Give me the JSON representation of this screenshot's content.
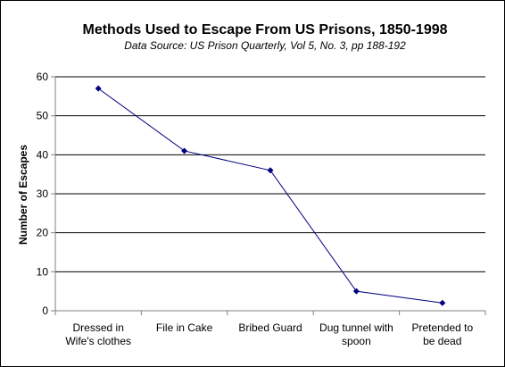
{
  "chart_data": {
    "type": "line",
    "title": "Methods Used to Escape From US Prisons, 1850-1998",
    "subtitle": "Data Source: US Prison Quarterly, Vol 5, No. 3, pp 188-192",
    "xlabel": "",
    "ylabel": "Number of Escapes",
    "categories": [
      [
        "Dressed in",
        "Wife's clothes"
      ],
      [
        "File in Cake"
      ],
      [
        "Bribed Guard"
      ],
      [
        "Dug tunnel with",
        "spoon"
      ],
      [
        "Pretended to",
        "be dead"
      ]
    ],
    "series": [
      {
        "values": [
          57,
          41,
          36,
          5,
          2
        ]
      }
    ],
    "ylim": [
      0,
      60
    ],
    "yticks": [
      0,
      10,
      20,
      30,
      40,
      50,
      60
    ],
    "grid": true,
    "legend": "none",
    "colors": {
      "line": "#000080",
      "marker": "#000080",
      "grid": "#000000",
      "axis": "#808080"
    }
  }
}
